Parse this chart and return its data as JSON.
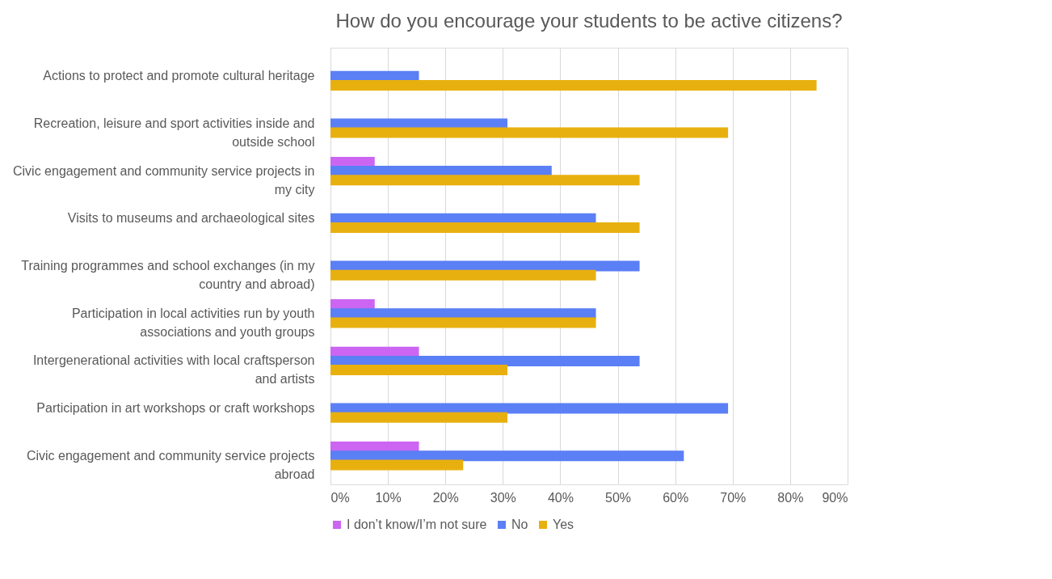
{
  "chart_data": {
    "type": "bar",
    "orientation": "horizontal",
    "title": "How do you encourage your students to be active citizens?",
    "categories": [
      "Actions to protect and promote cultural heritage",
      "Recreation, leisure and sport activities inside and outside school",
      "Civic engagement and community service projects in my city",
      "Visits to museums and archaeological sites",
      "Training programmes and school exchanges (in my country and abroad)",
      "Participation in local activities run by youth associations and youth groups",
      "Intergenerational activities with local craftsperson and artists",
      "Participation in art workshops or craft workshops",
      "Civic engagement and community service projects abroad"
    ],
    "series": [
      {
        "name": "I don’t know/I’m not sure",
        "color": "#cc66f2",
        "values": [
          null,
          null,
          7.7,
          null,
          null,
          7.7,
          15.4,
          null,
          15.4
        ]
      },
      {
        "name": "No",
        "color": "#5b7ff5",
        "values": [
          15.4,
          30.8,
          38.5,
          46.2,
          53.8,
          46.2,
          53.8,
          69.2,
          61.5
        ]
      },
      {
        "name": "Yes",
        "color": "#e8b00f",
        "values": [
          84.6,
          69.2,
          53.8,
          53.8,
          46.2,
          46.2,
          30.8,
          30.8,
          23.1
        ]
      }
    ],
    "xlim": [
      0,
      90
    ],
    "xticks": [
      {
        "value": 0,
        "label": "0%"
      },
      {
        "value": 10,
        "label": "10%"
      },
      {
        "value": 20,
        "label": "20%"
      },
      {
        "value": 30,
        "label": "30%"
      },
      {
        "value": 40,
        "label": "40%"
      },
      {
        "value": 50,
        "label": "50%"
      },
      {
        "value": 60,
        "label": "60%"
      },
      {
        "value": 70,
        "label": "70%"
      },
      {
        "value": 80,
        "label": "80%"
      },
      {
        "value": 90,
        "label": "90%"
      }
    ],
    "grid": "x",
    "legend": "bottom"
  }
}
